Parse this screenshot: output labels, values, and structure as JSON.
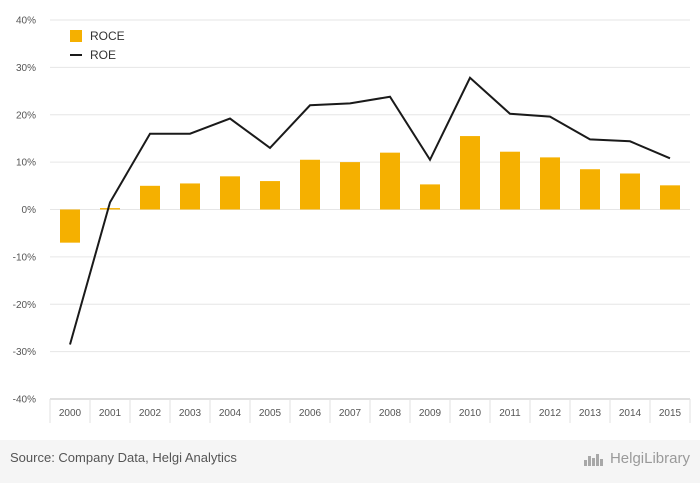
{
  "chart_data": {
    "type": "bar",
    "categories": [
      "2000",
      "2001",
      "2002",
      "2003",
      "2004",
      "2005",
      "2006",
      "2007",
      "2008",
      "2009",
      "2010",
      "2011",
      "2012",
      "2013",
      "2014",
      "2015"
    ],
    "series": [
      {
        "name": "ROCE",
        "type": "bar",
        "color": "#f5b000",
        "values": [
          -7.0,
          0.3,
          5.0,
          5.5,
          7.0,
          6.0,
          10.5,
          10.0,
          12.0,
          5.3,
          15.5,
          12.2,
          11.0,
          8.5,
          7.6,
          5.1
        ]
      },
      {
        "name": "ROE",
        "type": "line",
        "color": "#1a1a1a",
        "values": [
          -28.5,
          1.5,
          16.0,
          16.0,
          19.2,
          13.0,
          22.0,
          22.4,
          23.8,
          10.5,
          27.8,
          20.2,
          19.6,
          14.8,
          14.4,
          10.8
        ]
      }
    ],
    "ylim": [
      -40,
      40
    ],
    "yticks": [
      "40%",
      "30%",
      "20%",
      "10%",
      "0%",
      "-10%",
      "-20%",
      "-30%",
      "-40%"
    ],
    "grid": true,
    "legend_position": "top-left"
  },
  "footer": {
    "source": "Source: Company Data, Helgi Analytics",
    "brand": "HelgiLibrary"
  }
}
